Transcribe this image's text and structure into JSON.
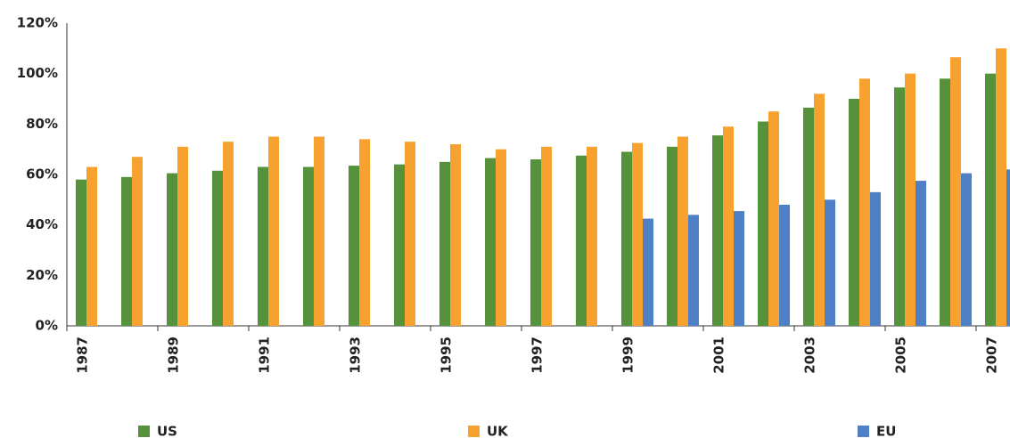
{
  "chart_data": {
    "type": "bar",
    "categories": [
      "1987",
      null,
      "1989",
      null,
      "1991",
      null,
      "1993",
      null,
      "1995",
      null,
      "1997",
      null,
      "1999",
      null,
      "2001",
      null,
      "2003",
      null,
      "2005",
      null,
      "2007"
    ],
    "series": [
      {
        "name": "US",
        "color": "#55923b",
        "values": [
          58,
          59,
          60.5,
          61.5,
          63,
          63,
          63.5,
          64,
          65,
          66.5,
          66,
          67.5,
          69,
          71,
          75.5,
          81,
          86.5,
          90,
          94.5,
          98,
          100
        ]
      },
      {
        "name": "UK",
        "color": "#f7a12f",
        "values": [
          63,
          67,
          71,
          73,
          75,
          75,
          74,
          73,
          72,
          70,
          71,
          71,
          72.5,
          75,
          79,
          85,
          92,
          98,
          100,
          106.5,
          110
        ]
      },
      {
        "name": "EU",
        "color": "#4f7fc4",
        "values": [
          null,
          null,
          null,
          null,
          null,
          null,
          null,
          null,
          null,
          null,
          null,
          null,
          42.5,
          44,
          45.5,
          48,
          50,
          53,
          57.5,
          60.5,
          62
        ]
      }
    ],
    "ylim": [
      0,
      120
    ],
    "yticks": [
      {
        "value": 0,
        "label": "0%"
      },
      {
        "value": 20,
        "label": "20%"
      },
      {
        "value": 40,
        "label": "40%"
      },
      {
        "value": 60,
        "label": "60%"
      },
      {
        "value": 80,
        "label": "80%"
      },
      {
        "value": 100,
        "label": "100%"
      },
      {
        "value": 120,
        "label": "120%"
      }
    ],
    "grid": false,
    "legend": "bottom"
  }
}
